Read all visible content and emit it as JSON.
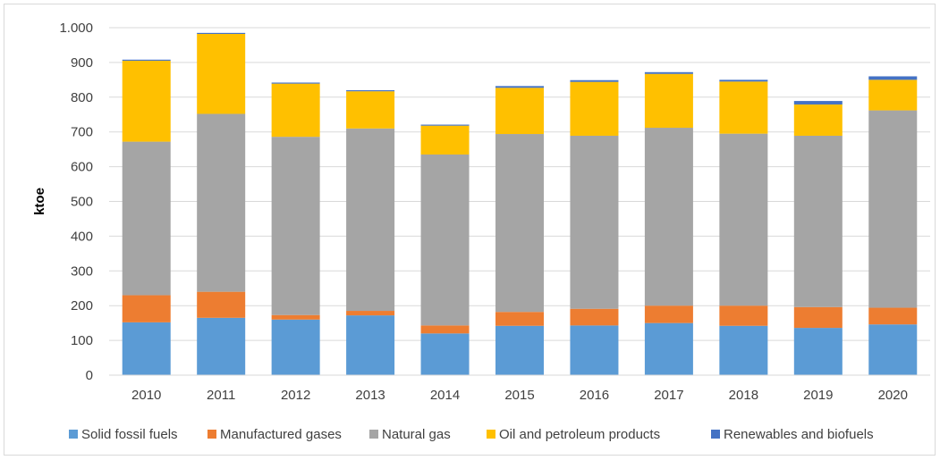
{
  "chart_data": {
    "type": "bar",
    "stacked": true,
    "categories": [
      "2010",
      "2011",
      "2012",
      "2013",
      "2014",
      "2015",
      "2016",
      "2017",
      "2018",
      "2019",
      "2020"
    ],
    "series": [
      {
        "name": "Solid fossil fuels",
        "color": "#5b9bd5",
        "values": [
          152,
          165,
          160,
          172,
          120,
          142,
          143,
          150,
          142,
          136,
          146
        ]
      },
      {
        "name": "Manufactured gases",
        "color": "#ed7d31",
        "values": [
          78,
          75,
          13,
          13,
          23,
          40,
          48,
          50,
          58,
          60,
          48
        ]
      },
      {
        "name": "Natural gas",
        "color": "#a5a5a5",
        "values": [
          442,
          512,
          513,
          525,
          492,
          512,
          498,
          512,
          495,
          493,
          568
        ]
      },
      {
        "name": "Oil and petroleum products",
        "color": "#ffc000",
        "values": [
          233,
          230,
          153,
          107,
          83,
          133,
          155,
          155,
          150,
          90,
          88
        ]
      },
      {
        "name": "Renewables and biofuels",
        "color": "#4472c4",
        "values": [
          3,
          3,
          3,
          3,
          3,
          5,
          5,
          5,
          5,
          10,
          10
        ]
      }
    ],
    "title": "",
    "xlabel": "",
    "ylabel": "ktoe",
    "ylim": [
      0,
      1000
    ],
    "yticks": [
      0,
      100,
      200,
      300,
      400,
      500,
      600,
      700,
      800,
      900,
      1000
    ],
    "ytick_labels": [
      "0",
      "100",
      "200",
      "300",
      "400",
      "500",
      "600",
      "700",
      "800",
      "900",
      "1.000"
    ],
    "grid": "horizontal",
    "legend_position": "bottom"
  }
}
